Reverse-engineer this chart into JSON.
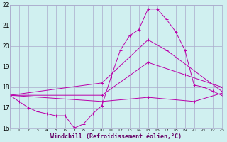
{
  "background_color": "#d0f0f0",
  "grid_color": "#aaaacc",
  "line_color": "#bb00aa",
  "xlim": [
    0,
    23
  ],
  "ylim": [
    16,
    22
  ],
  "xlabel": "Windchill (Refroidissement éolien,°C)",
  "xlabel_fontsize": 6,
  "ytick_values": [
    16,
    17,
    18,
    19,
    20,
    21,
    22
  ],
  "xtick_values": [
    0,
    1,
    2,
    3,
    4,
    5,
    6,
    7,
    8,
    9,
    10,
    11,
    12,
    13,
    14,
    15,
    16,
    17,
    18,
    19,
    20,
    21,
    22,
    23
  ],
  "series": [
    {
      "x": [
        0,
        1,
        2,
        3,
        4,
        5,
        6,
        7,
        8,
        9,
        10,
        11,
        12,
        13,
        14,
        15,
        16,
        17,
        18,
        19,
        20,
        21,
        22,
        23
      ],
      "y": [
        17.6,
        17.3,
        17.0,
        16.8,
        16.7,
        16.6,
        16.6,
        16.0,
        16.2,
        16.7,
        17.1,
        18.5,
        19.8,
        20.5,
        20.8,
        21.8,
        21.8,
        21.3,
        20.7,
        19.8,
        18.1,
        18.0,
        17.8,
        17.6
      ],
      "marker": "+"
    },
    {
      "x": [
        0,
        10,
        15,
        17,
        23
      ],
      "y": [
        17.6,
        18.2,
        20.3,
        19.8,
        17.8
      ],
      "marker": "+"
    },
    {
      "x": [
        0,
        10,
        15,
        19,
        23
      ],
      "y": [
        17.6,
        17.6,
        19.2,
        18.6,
        18.0
      ],
      "marker": "+"
    },
    {
      "x": [
        0,
        10,
        15,
        20,
        23
      ],
      "y": [
        17.6,
        17.3,
        17.5,
        17.3,
        17.7
      ],
      "marker": "+"
    }
  ]
}
